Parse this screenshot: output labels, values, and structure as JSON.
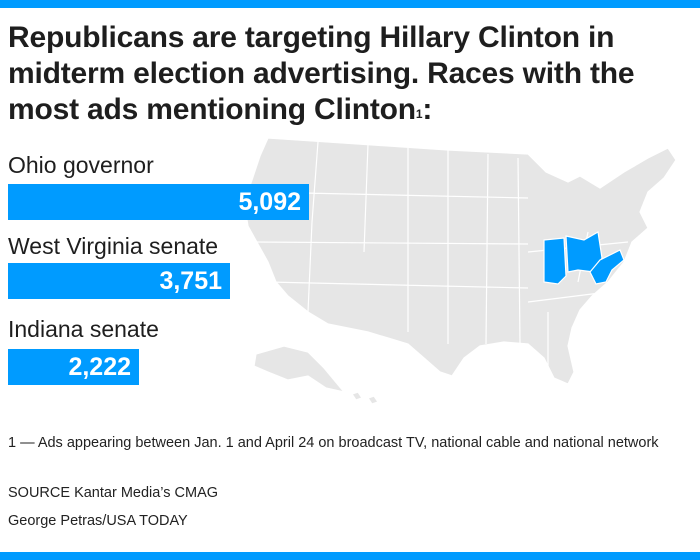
{
  "header": {
    "title": "Republicans are targeting Hillary Clinton in midterm election advertising. Races with the most ads mentioning Clinton",
    "title_footnote_mark": "1",
    "title_suffix": ":"
  },
  "colors": {
    "accent": "#009bff",
    "map_land": "#e6e6e6",
    "map_border": "#ffffff"
  },
  "map": {
    "highlighted_states": [
      "Ohio",
      "Indiana",
      "West Virginia"
    ]
  },
  "chart_data": {
    "type": "bar",
    "orientation": "horizontal",
    "categories": [
      "Ohio governor",
      "West Virginia senate",
      "Indiana senate"
    ],
    "values": [
      5092,
      3751,
      2222
    ],
    "value_labels": [
      "5,092",
      "3,751",
      "2,222"
    ],
    "xlim": [
      0,
      5092
    ]
  },
  "notes": {
    "footnote": "1 — Ads appearing between Jan. 1 and April 24 on broadcast TV, national cable and national network",
    "source": "SOURCE Kantar Media’s CMAG",
    "credit": "George Petras/USA TODAY"
  }
}
